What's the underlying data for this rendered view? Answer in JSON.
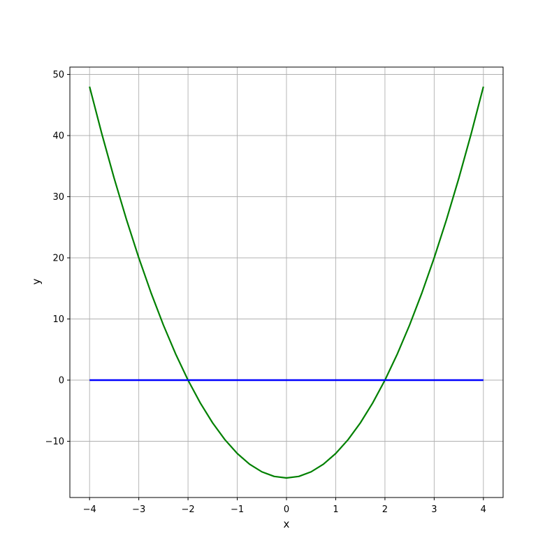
{
  "figure": {
    "background": "#ffffff",
    "spine_color": "#000000",
    "tick_color": "#000000"
  },
  "chart_data": {
    "type": "line",
    "title": "",
    "xlabel": "x",
    "ylabel": "y",
    "xlim": [
      -4.4,
      4.4
    ],
    "ylim": [
      -19.2,
      51.2
    ],
    "grid": true,
    "grid_color": "#b0b0b0",
    "xticks": {
      "values": [
        -4,
        -3,
        -2,
        -1,
        0,
        1,
        2,
        3,
        4
      ],
      "labels": [
        "−4",
        "−3",
        "−2",
        "−1",
        "0",
        "1",
        "2",
        "3",
        "4"
      ]
    },
    "yticks": {
      "values": [
        -10,
        0,
        10,
        20,
        30,
        40,
        50
      ],
      "labels": [
        "−10",
        "0",
        "10",
        "20",
        "30",
        "40",
        "50"
      ]
    },
    "series": [
      {
        "name": "green-parabola",
        "color": "#008000",
        "linewidth": 2.2,
        "x": [
          -4,
          -3.75,
          -3.5,
          -3.25,
          -3,
          -2.75,
          -2.5,
          -2.25,
          -2,
          -1.75,
          -1.5,
          -1.25,
          -1,
          -0.75,
          -0.5,
          -0.25,
          0,
          0.25,
          0.5,
          0.75,
          1,
          1.25,
          1.5,
          1.75,
          2,
          2.25,
          2.5,
          2.75,
          3,
          3.25,
          3.5,
          3.75,
          4
        ],
        "y": [
          48,
          40.25,
          33,
          26.25,
          20,
          14.25,
          9,
          4.25,
          0,
          -3.75,
          -7,
          -9.75,
          -12,
          -13.75,
          -15,
          -15.75,
          -16,
          -15.75,
          -15,
          -13.75,
          -12,
          -9.75,
          -7,
          -3.75,
          0,
          4.25,
          9,
          14.25,
          20,
          26.25,
          33,
          40.25,
          48
        ]
      },
      {
        "name": "blue-horizontal-line",
        "color": "#0000ff",
        "linewidth": 2.5,
        "x": [
          -4,
          4
        ],
        "y": [
          0,
          0
        ]
      }
    ]
  }
}
